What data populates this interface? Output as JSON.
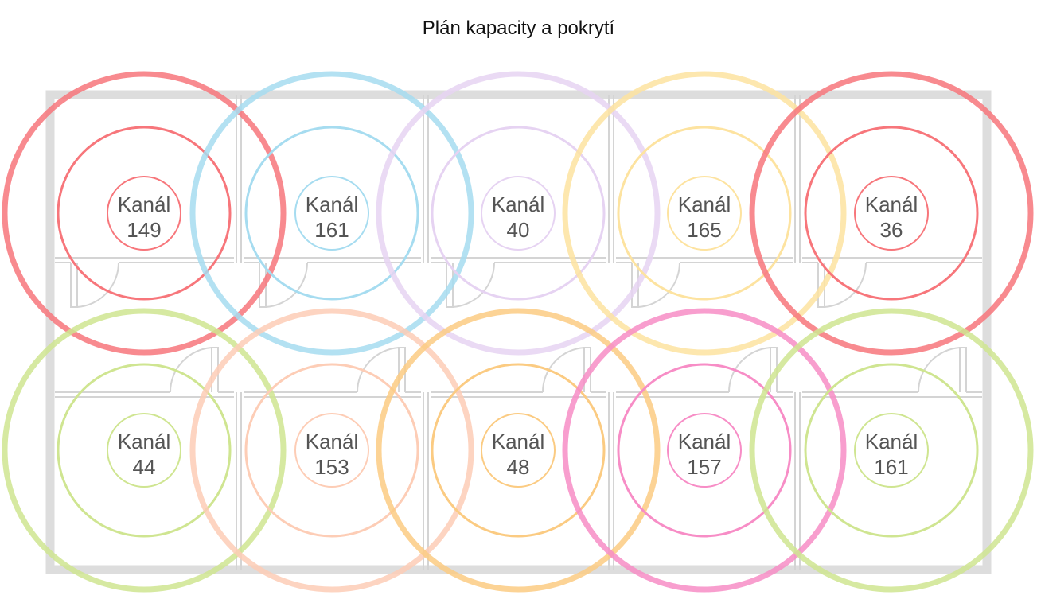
{
  "title": "Plán kapacity a pokrytí",
  "channel_prefix": "Kanál",
  "colors": {
    "wall": "#dddddd",
    "inner_wall": "#d4d4d4",
    "text": "#555555"
  },
  "access_points": [
    {
      "row": 0,
      "col": 0,
      "channel": "149",
      "color": "#f7767b"
    },
    {
      "row": 0,
      "col": 1,
      "channel": "161",
      "color": "#a6dcf0"
    },
    {
      "row": 0,
      "col": 2,
      "channel": "40",
      "color": "#e6d3f2"
    },
    {
      "row": 0,
      "col": 3,
      "channel": "165",
      "color": "#fde3a0"
    },
    {
      "row": 0,
      "col": 4,
      "channel": "36",
      "color": "#f7767b"
    },
    {
      "row": 1,
      "col": 0,
      "channel": "44",
      "color": "#cfe591"
    },
    {
      "row": 1,
      "col": 1,
      "channel": "153",
      "color": "#fdcdb6"
    },
    {
      "row": 1,
      "col": 2,
      "channel": "48",
      "color": "#fbcb82"
    },
    {
      "row": 1,
      "col": 3,
      "channel": "157",
      "color": "#f78dc6"
    },
    {
      "row": 1,
      "col": 4,
      "channel": "161",
      "color": "#cfe591"
    }
  ]
}
